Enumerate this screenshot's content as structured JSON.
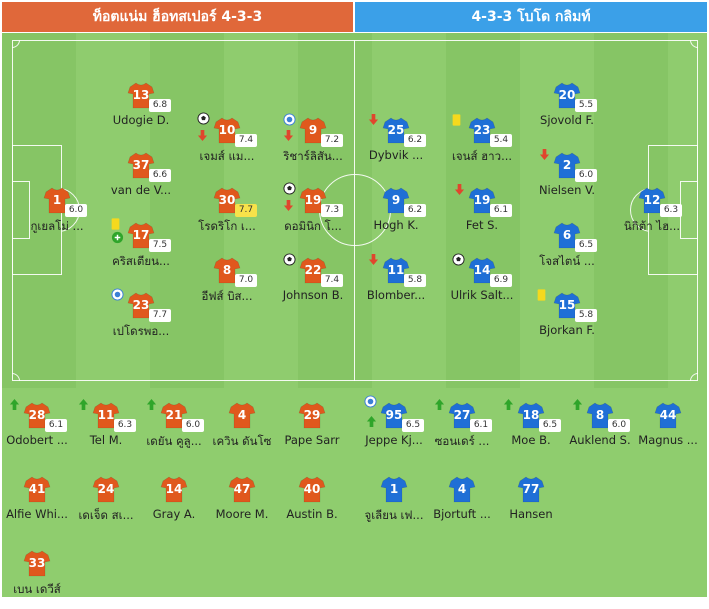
{
  "header": {
    "home_title": "ท็อตแน่ม ฮ็อทสเปอร์ 4-3-3",
    "away_title": "4-3-3 โบโด กลิมท์"
  },
  "colors": {
    "home": "#e0581d",
    "away": "#1f6fd6"
  },
  "home_starters": [
    {
      "number": "1",
      "name": "กูเยลโม่ ...",
      "rating": "6.0"
    },
    {
      "number": "13",
      "name": "Udogie D.",
      "rating": "6.8"
    },
    {
      "number": "37",
      "name": "van de V...",
      "rating": "6.6"
    },
    {
      "number": "17",
      "name": "คริสเตียน...",
      "rating": "7.5"
    },
    {
      "number": "23",
      "name": "เปโดรพอ...",
      "rating": "7.7"
    },
    {
      "number": "10",
      "name": "เจมส์ แม...",
      "rating": "7.4"
    },
    {
      "number": "30",
      "name": "โรดริโก เ...",
      "rating": "7.7"
    },
    {
      "number": "8",
      "name": "อีฟส์ บิส...",
      "rating": "7.0"
    },
    {
      "number": "9",
      "name": "ริชาร์ลิสัน...",
      "rating": "7.2"
    },
    {
      "number": "19",
      "name": "ดอมินิก โ...",
      "rating": "7.3"
    },
    {
      "number": "22",
      "name": "Johnson B.",
      "rating": "7.4"
    }
  ],
  "away_starters": [
    {
      "number": "25",
      "name": "Dybvik ...",
      "rating": "6.2"
    },
    {
      "number": "9",
      "name": "Hogh K.",
      "rating": "6.2"
    },
    {
      "number": "11",
      "name": "Blomber...",
      "rating": "5.8"
    },
    {
      "number": "23",
      "name": "เจนส์ ฮาว...",
      "rating": "5.4"
    },
    {
      "number": "19",
      "name": "Fet S.",
      "rating": "6.1"
    },
    {
      "number": "14",
      "name": "Ulrik Salt...",
      "rating": "6.9"
    },
    {
      "number": "20",
      "name": "Sjovold F.",
      "rating": "5.5"
    },
    {
      "number": "2",
      "name": "Nielsen V.",
      "rating": "6.0"
    },
    {
      "number": "6",
      "name": "โจสไตน์ ...",
      "rating": "6.5"
    },
    {
      "number": "15",
      "name": "Bjorkan F.",
      "rating": "5.8"
    },
    {
      "number": "12",
      "name": "นิกิต้า ไฮ...",
      "rating": "6.3"
    }
  ],
  "home_subs": [
    {
      "number": "28",
      "name": "Odobert ...",
      "rating": "6.1"
    },
    {
      "number": "11",
      "name": "Tel M.",
      "rating": "6.3"
    },
    {
      "number": "21",
      "name": "เดยัน คูลู...",
      "rating": "6.0"
    },
    {
      "number": "4",
      "name": "เควิน ดันโซ",
      "rating": ""
    },
    {
      "number": "29",
      "name": "Pape Sarr",
      "rating": ""
    },
    {
      "number": "41",
      "name": "Alfie Whi...",
      "rating": ""
    },
    {
      "number": "24",
      "name": "เดเจ็ด สเ...",
      "rating": ""
    },
    {
      "number": "14",
      "name": "Gray A.",
      "rating": ""
    },
    {
      "number": "47",
      "name": "Moore M.",
      "rating": ""
    },
    {
      "number": "40",
      "name": "Austin B.",
      "rating": ""
    },
    {
      "number": "33",
      "name": "เบน เดวีส์",
      "rating": ""
    }
  ],
  "away_subs": [
    {
      "number": "95",
      "name": "Jeppe Kj...",
      "rating": "6.5"
    },
    {
      "number": "27",
      "name": "ซอนเดร์ ...",
      "rating": "6.1"
    },
    {
      "number": "18",
      "name": "Moe B.",
      "rating": "6.5"
    },
    {
      "number": "8",
      "name": "Auklend S.",
      "rating": "6.0"
    },
    {
      "number": "44",
      "name": "Magnus ...",
      "rating": ""
    },
    {
      "number": "1",
      "name": "จูเลียน เฟ...",
      "rating": ""
    },
    {
      "number": "4",
      "name": "Bjortuft ...",
      "rating": ""
    },
    {
      "number": "77",
      "name": "Hansen",
      "rating": ""
    }
  ]
}
